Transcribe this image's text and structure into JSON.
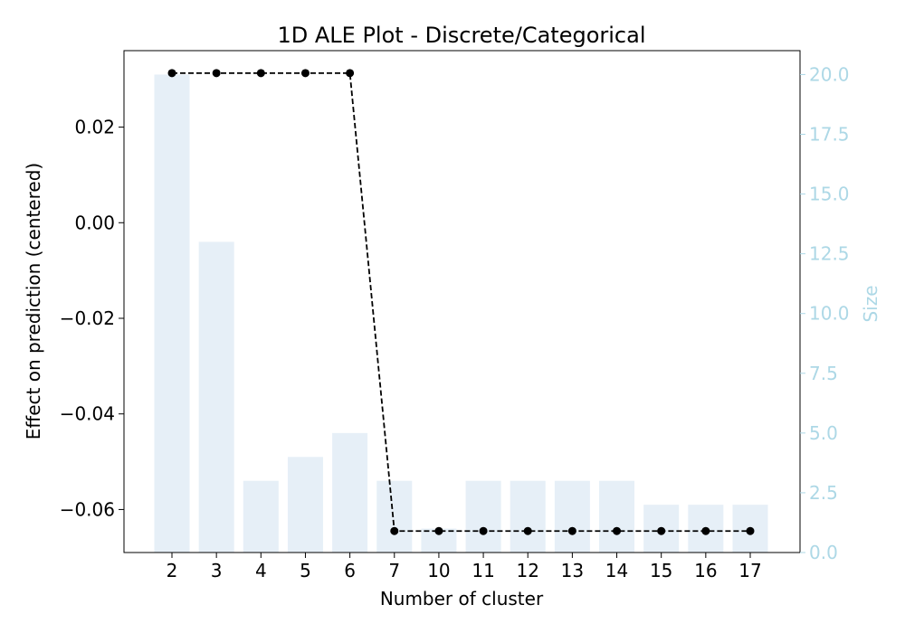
{
  "chart_data": {
    "type": "bar",
    "title": "1D ALE Plot - Discrete/Categorical",
    "xlabel": "Number of cluster",
    "ylabel": "Effect on prediction (centered)",
    "y2label": "Size",
    "categories": [
      "2",
      "3",
      "4",
      "5",
      "6",
      "7",
      "10",
      "11",
      "12",
      "13",
      "14",
      "15",
      "16",
      "17"
    ],
    "series": [
      {
        "axis": "right",
        "render": "bar",
        "values": [
          20,
          13,
          3,
          4,
          5,
          3,
          1,
          3,
          3,
          3,
          3,
          2,
          2,
          2
        ]
      },
      {
        "axis": "left",
        "render": "line-dashed-markers",
        "values": [
          0.0313,
          0.0313,
          0.0313,
          0.0313,
          0.0313,
          -0.0645,
          -0.0645,
          -0.0645,
          -0.0645,
          -0.0645,
          -0.0645,
          -0.0645,
          -0.0645,
          -0.0645
        ]
      }
    ],
    "ylim": [
      -0.069,
      0.036
    ],
    "y2lim": [
      0,
      21
    ],
    "yticks": [
      "0.02",
      "0.00",
      "−0.02",
      "−0.04",
      "−0.06"
    ],
    "yticks_values": [
      0.02,
      0.0,
      -0.02,
      -0.04,
      -0.06
    ],
    "y2ticks": [
      "0.0",
      "2.5",
      "5.0",
      "7.5",
      "10.0",
      "12.5",
      "15.0",
      "17.5",
      "20.0"
    ],
    "y2ticks_values": [
      0,
      2.5,
      5,
      7.5,
      10,
      12.5,
      15,
      17.5,
      20
    ],
    "grid": false,
    "colors": {
      "bar": "#e6eff7",
      "line": "#000000",
      "right_axis": "#add8e6",
      "left_axis": "#000000"
    }
  }
}
